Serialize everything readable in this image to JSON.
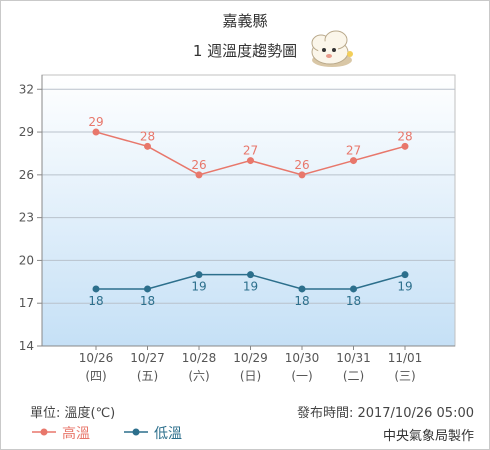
{
  "title": "嘉義縣",
  "subtitle": "1 週溫度趨勢圖",
  "unit_label": "單位: 溫度(℃)",
  "published": "發布時間: 2017/10/26 05:00",
  "credit": "中央氣象局製作",
  "mascot_icon": "cloud-mascot-icon",
  "colors": {
    "high": "#e8776b",
    "low": "#2c6f8c",
    "plot_top": "#ffffff",
    "plot_bottom": "#c5e0f6"
  },
  "chart_data": {
    "type": "line",
    "categories": [
      "10/26",
      "10/27",
      "10/28",
      "10/29",
      "10/30",
      "10/31",
      "11/01"
    ],
    "category_sublabels": [
      "(四)",
      "(五)",
      "(六)",
      "(日)",
      "(一)",
      "(二)",
      "(三)"
    ],
    "series": [
      {
        "name": "高溫",
        "values": [
          29,
          28,
          26,
          27,
          26,
          27,
          28
        ]
      },
      {
        "name": "低溫",
        "values": [
          18,
          18,
          19,
          19,
          18,
          18,
          19
        ]
      }
    ],
    "yticks": [
      14,
      17,
      20,
      23,
      26,
      29,
      32
    ],
    "ylim": [
      14,
      33
    ],
    "grid": true,
    "legend_position": "bottom-left"
  }
}
